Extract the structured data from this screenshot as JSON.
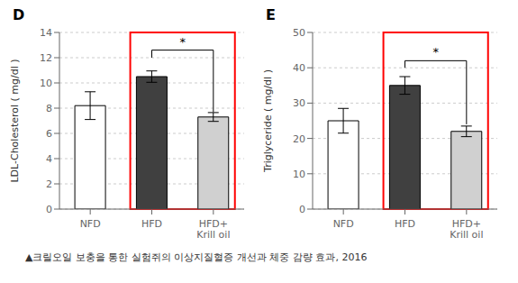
{
  "chart_data": [
    {
      "type": "bar",
      "title": "D",
      "categories": [
        "NFD",
        "HFD",
        "HFD+\nKrill oil"
      ],
      "values": [
        8.2,
        10.5,
        7.3
      ],
      "errors": [
        1.1,
        0.45,
        0.35
      ],
      "colors": [
        "#ffffff",
        "#404040",
        "#d0d0d0"
      ],
      "ylabel": "LDL-Cholesterol ( mg/dl )",
      "ylim": [
        0,
        14
      ],
      "yticks": [
        0,
        2,
        4,
        6,
        8,
        10,
        12,
        14
      ],
      "grid": true,
      "annotations": [
        {
          "type": "box",
          "from": "HFD",
          "to": "HFD+\nKrill oil",
          "color": "red"
        },
        {
          "type": "bracket",
          "text": "*",
          "from": "HFD",
          "to": "HFD+\nKrill oil",
          "y_from": 12.0,
          "y_to": 7.7,
          "y_top": 12.6
        }
      ]
    },
    {
      "type": "bar",
      "title": "E",
      "categories": [
        "NFD",
        "HFD",
        "HFD+\nKrill oil"
      ],
      "values": [
        25.0,
        35.0,
        22.0
      ],
      "errors": [
        3.5,
        2.5,
        1.5
      ],
      "colors": [
        "#ffffff",
        "#404040",
        "#d0d0d0"
      ],
      "ylabel": "Triglyceride ( mg/dl )",
      "ylim": [
        0,
        50
      ],
      "yticks": [
        0,
        10,
        20,
        30,
        40,
        50
      ],
      "grid": true,
      "annotations": [
        {
          "type": "box",
          "from": "HFD",
          "to": "HFD+\nKrill oil",
          "color": "red"
        },
        {
          "type": "bracket",
          "text": "*",
          "from": "HFD",
          "to": "HFD+\nKrill oil",
          "y_from": 40.0,
          "y_to": 24.0,
          "y_top": 42.0
        }
      ]
    }
  ],
  "caption": "▲크릴오일 보충을 통한 실험쥐의 이상지질혈증 개선과 체중 감량 효과, 2016"
}
